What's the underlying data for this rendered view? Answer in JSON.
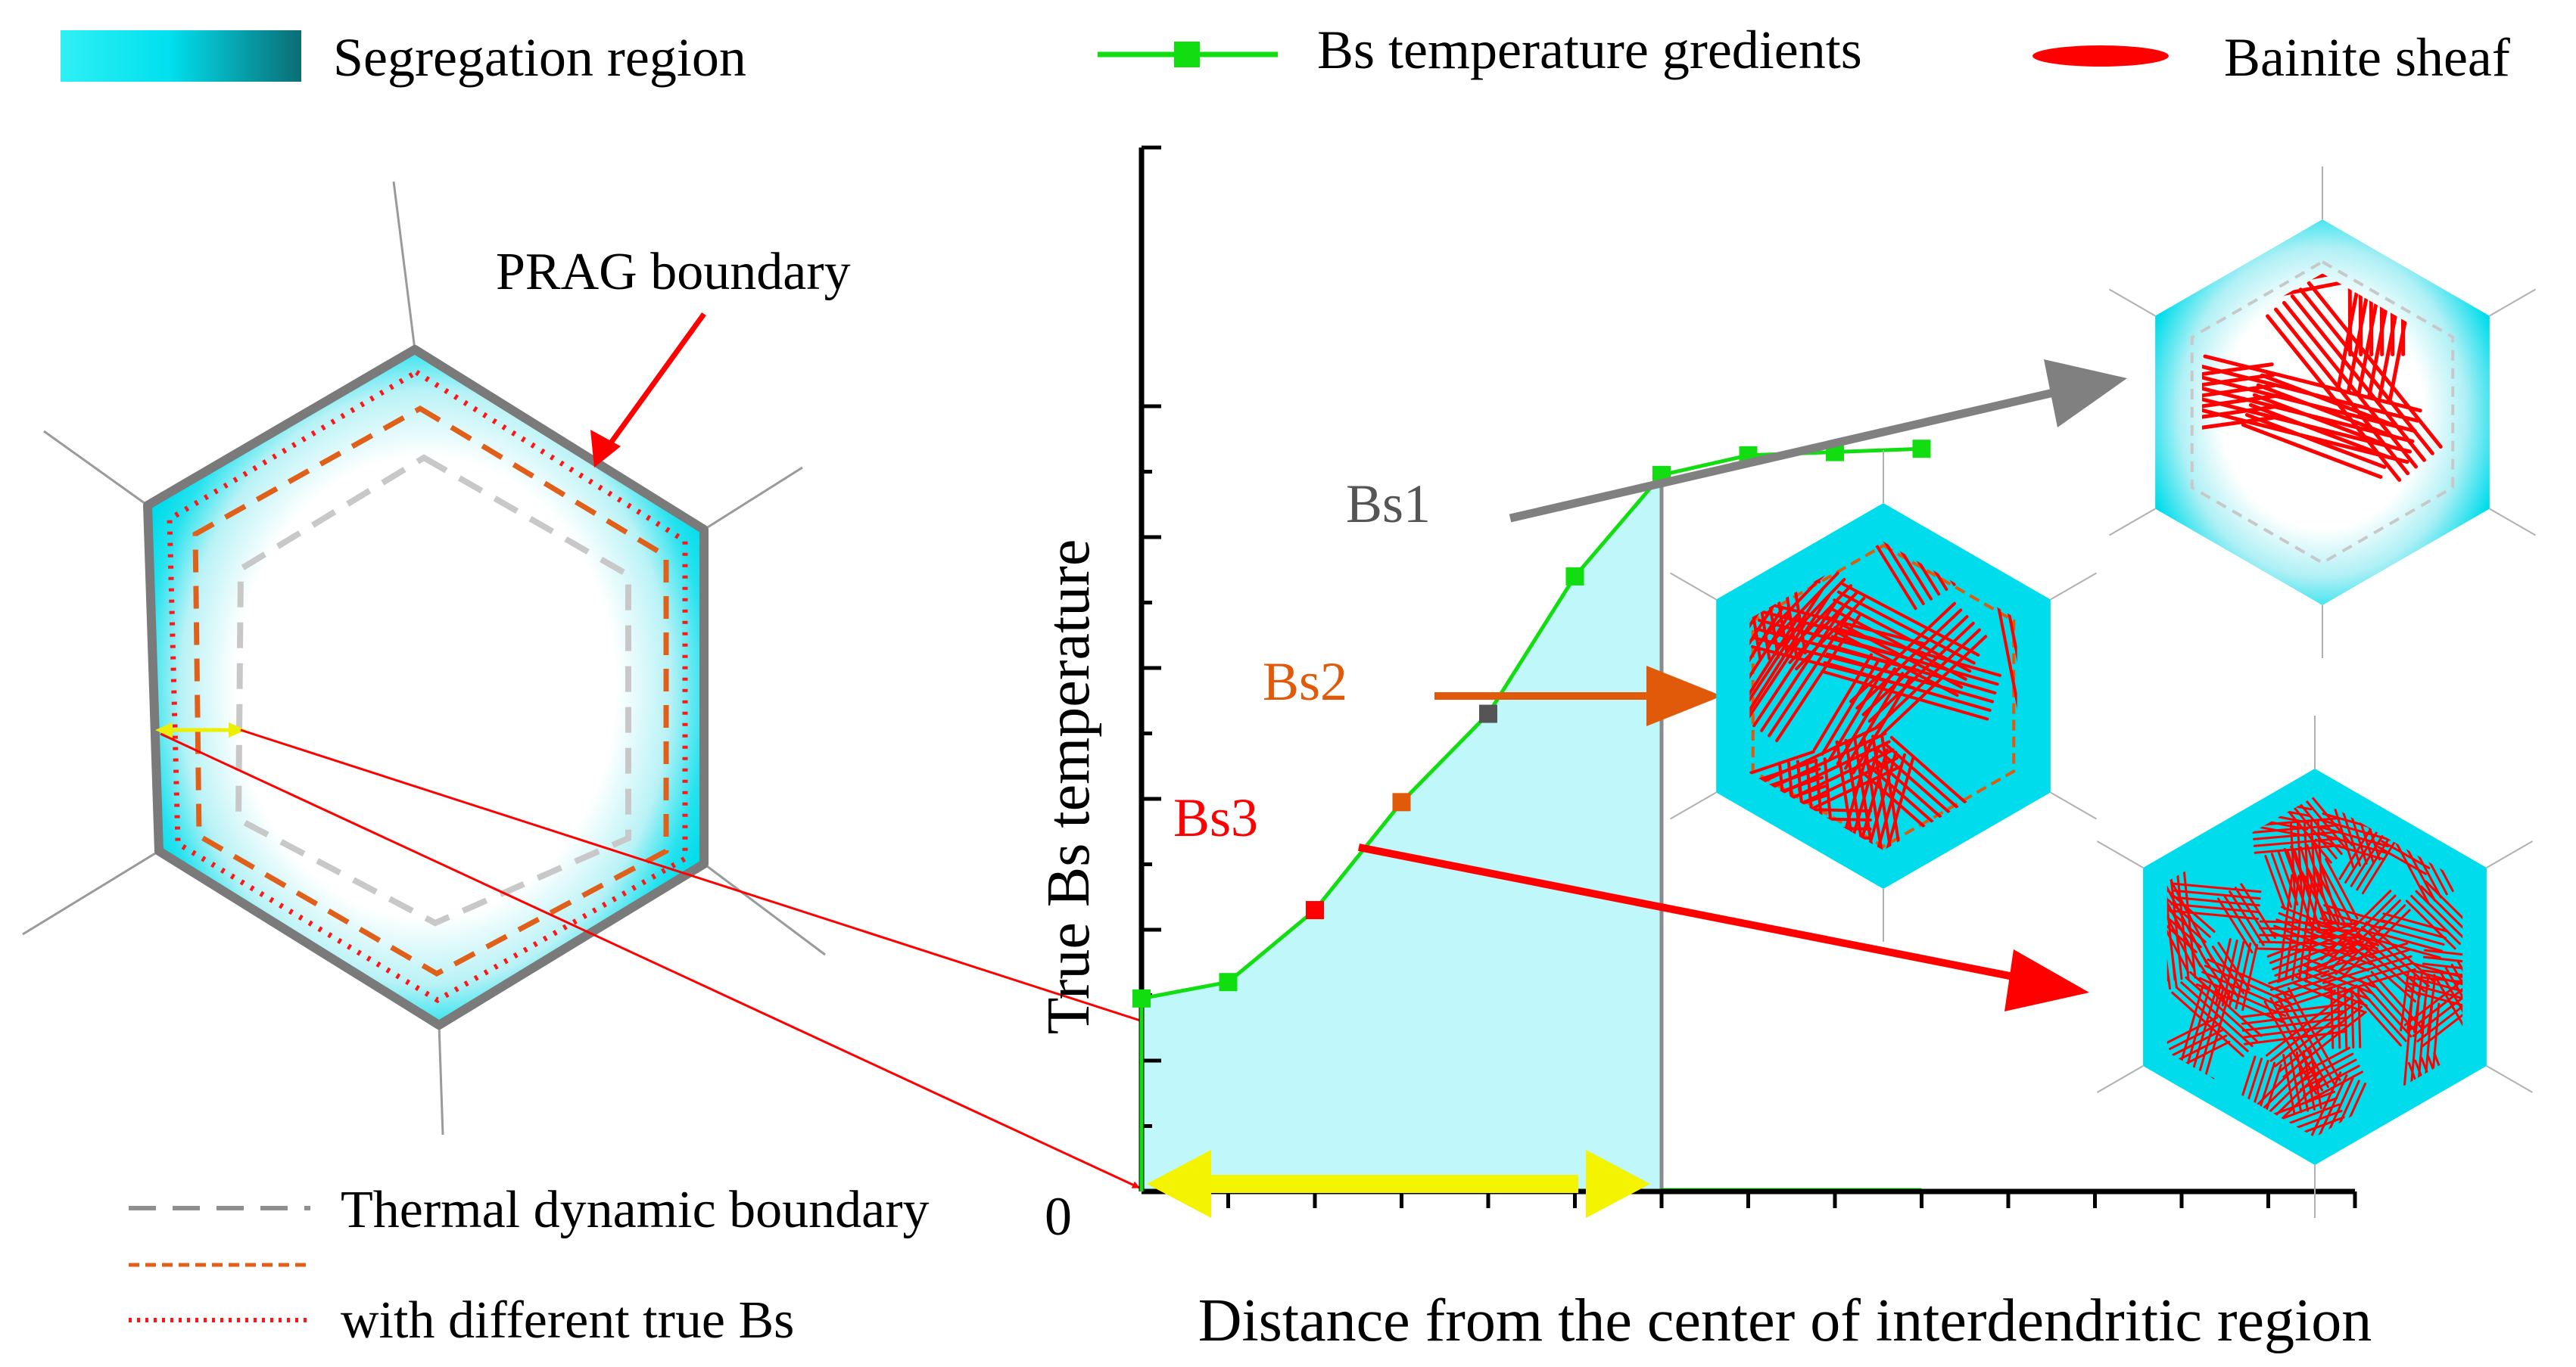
{
  "legend": {
    "segregation_region": "Segregation region",
    "bs_gradients": "Bs temperature gredients",
    "bainite_sheaf": "Bainite sheaf"
  },
  "left_diagram": {
    "prag_label": "PRAG boundary",
    "legend_thermal": "Thermal dynamic boundary",
    "legend_different": "with different true Bs"
  },
  "chart": {
    "ylabel": "True Bs temperature",
    "xlabel": "Distance from the center of interdendritic region",
    "origin_label": "0",
    "marker_labels": {
      "bs1": "Bs1",
      "bs2": "Bs2",
      "bs3": "Bs3"
    }
  },
  "colors": {
    "segregation": "#00e0ee",
    "segregation_dark": "#0a7f86",
    "curve": "#11dd11",
    "bainite": "#ff0000",
    "bs1": "#555555",
    "bs2": "#e05a0a",
    "bs3": "#ff0000",
    "arrow_yellow": "#f4f400",
    "shade": "#bff7fa"
  },
  "chart_data": {
    "type": "line",
    "title": "",
    "xlabel": "Distance from the center of interdendritic region",
    "ylabel": "True Bs temperature",
    "series": [
      {
        "name": "Bs temperature gredients",
        "x": [
          0,
          1,
          2,
          3,
          4,
          5,
          6,
          7,
          8,
          9
        ],
        "y": [
          2.95,
          3.2,
          4.3,
          5.95,
          7.3,
          9.4,
          10.95,
          11.25,
          11.3,
          11.35
        ]
      }
    ],
    "xlim": [
      0,
      14
    ],
    "ylim": [
      0,
      12
    ],
    "grid": false,
    "shaded_region_x": [
      0,
      6
    ],
    "markers": [
      {
        "label": "Bs1",
        "x": 4,
        "y": 7.3
      },
      {
        "label": "Bs2",
        "x": 3,
        "y": 5.95
      },
      {
        "label": "Bs3",
        "x": 2,
        "y": 4.3
      }
    ]
  }
}
